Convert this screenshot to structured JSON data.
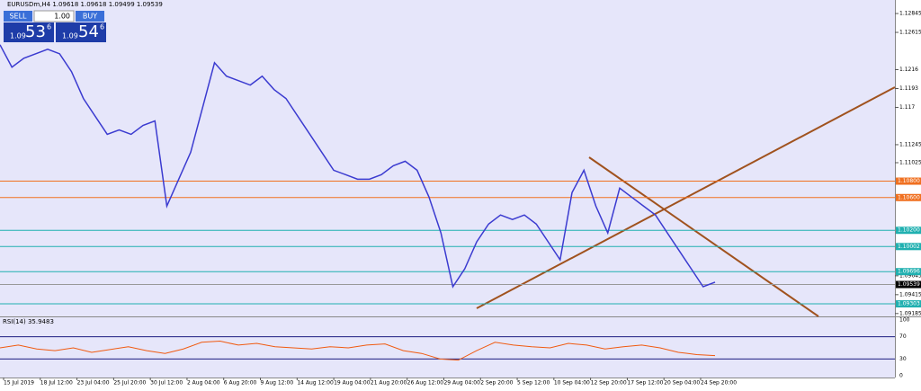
{
  "header": {
    "symbol_info": "EURUSDm,H4  1.09618 1.09618 1.09499 1.09539"
  },
  "trade_panel": {
    "sell": "SELL",
    "lot": "1.00",
    "buy": "BUY",
    "bid_big": "1.09",
    "bid_main": "53",
    "bid_small": "6",
    "ask_big": "1.09",
    "ask_main": "54",
    "ask_small": "6"
  },
  "chart_data": {
    "type": "line",
    "color": "#3b3bd0",
    "ylim": [
      1.0915,
      1.1301
    ],
    "yticks": [
      1.12845,
      1.12615,
      1.1216,
      1.1193,
      1.117,
      1.11245,
      1.11025,
      {
        "value": 1.09645,
        "label": "1.09645"
      },
      1.09415,
      1.09185
    ],
    "levels": [
      {
        "value": 1.108,
        "label": "1.10800",
        "color": "#f07020"
      },
      {
        "value": 1.106,
        "label": "1.10600",
        "color": "#f07020"
      },
      {
        "value": 1.102,
        "label": "1.10200",
        "color": "#20b0b0"
      },
      {
        "value": 1.10002,
        "label": "1.10002",
        "color": "#20b0b0"
      },
      {
        "value": 1.09696,
        "label": "1.09696",
        "color": "#20b0b0"
      },
      {
        "value": 1.09539,
        "label": "1.09539",
        "color": "#000000"
      },
      {
        "value": 1.09303,
        "label": "1.09303",
        "color": "#20b0b0"
      }
    ],
    "values": [
      1.12464,
      1.1219,
      1.123,
      1.12354,
      1.12409,
      1.12354,
      1.12136,
      1.11808,
      1.11589,
      1.11371,
      1.11425,
      1.11371,
      1.1148,
      1.11535,
      1.10496,
      1.10824,
      1.11152,
      1.11698,
      1.12245,
      1.12081,
      1.12026,
      1.11972,
      1.12081,
      1.11917,
      1.11808,
      1.11589,
      1.11371,
      1.11152,
      1.10933,
      1.10879,
      1.10824,
      1.10824,
      1.10879,
      1.10988,
      1.11043,
      1.10933,
      1.10605,
      1.10168,
      1.09512,
      1.09731,
      1.10059,
      1.10277,
      1.10387,
      1.10332,
      1.10387,
      1.10277,
      1.10059,
      1.0984,
      1.1066,
      1.10933,
      1.10496,
      1.10168,
      1.10715,
      1.10605,
      1.10496,
      1.10387,
      1.10168,
      1.0995,
      1.09731,
      1.09512,
      1.09567
    ],
    "x_labels": [
      "15 Jul 2019",
      "18 Jul 12:00",
      "23 Jul 04:00",
      "25 Jul 20:00",
      "30 Jul 12:00",
      "2 Aug 04:00",
      "6 Aug 20:00",
      "9 Aug 12:00",
      "14 Aug 12:00",
      "19 Aug 04:00",
      "21 Aug 20:00",
      "26 Aug 12:00",
      "29 Aug 04:00",
      "2 Sep 20:00",
      "5 Sep 12:00",
      "10 Sep 04:00",
      "12 Sep 20:00",
      "17 Sep 12:00",
      "20 Sep 04:00",
      "24 Sep 20:00"
    ],
    "rsi": {
      "title": "RSI(14) 35.9483",
      "color": "#f05a10",
      "ylim": [
        0,
        100
      ],
      "yticks": [
        100,
        70,
        30,
        0
      ],
      "values": [
        50,
        55,
        48,
        45,
        50,
        42,
        47,
        52,
        45,
        40,
        48,
        60,
        62,
        55,
        58,
        52,
        50,
        48,
        52,
        50,
        55,
        57,
        45,
        40,
        30,
        28,
        45,
        60,
        55,
        52,
        50,
        58,
        55,
        48,
        52,
        55,
        50,
        42,
        38,
        36
      ]
    }
  }
}
